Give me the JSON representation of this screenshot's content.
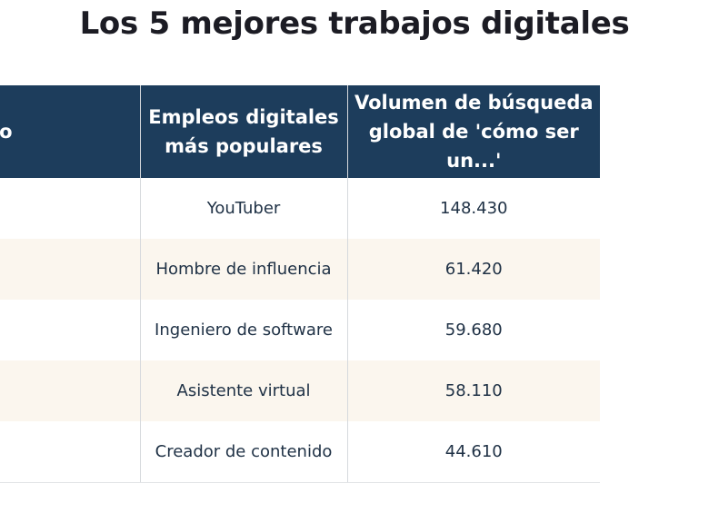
{
  "title": "Los 5 mejores trabajos digitales",
  "chart_data": {
    "type": "table",
    "title": "Los 5 mejores trabajos digitales",
    "columns": [
      "ango",
      "Empleos digitales más populares",
      "Volumen de búsqueda global de 'cómo ser un...'"
    ],
    "header_lines": {
      "rank": [
        "ango"
      ],
      "job": [
        "Empleos digitales",
        "más populares"
      ],
      "volume": [
        "Volumen de búsqueda",
        "global de 'cómo ser un...'"
      ]
    },
    "rows": [
      {
        "job": "YouTuber",
        "volume": "148.430"
      },
      {
        "job": "Hombre de influencia",
        "volume": "61.420"
      },
      {
        "job": "Ingeniero de software",
        "volume": "59.680"
      },
      {
        "job": "Asistente virtual",
        "volume": "58.110"
      },
      {
        "job": "Creador de contenido",
        "volume": "44.610"
      }
    ],
    "header_color": "#1d3d5c",
    "alt_row_color": "#fbf6ee"
  }
}
